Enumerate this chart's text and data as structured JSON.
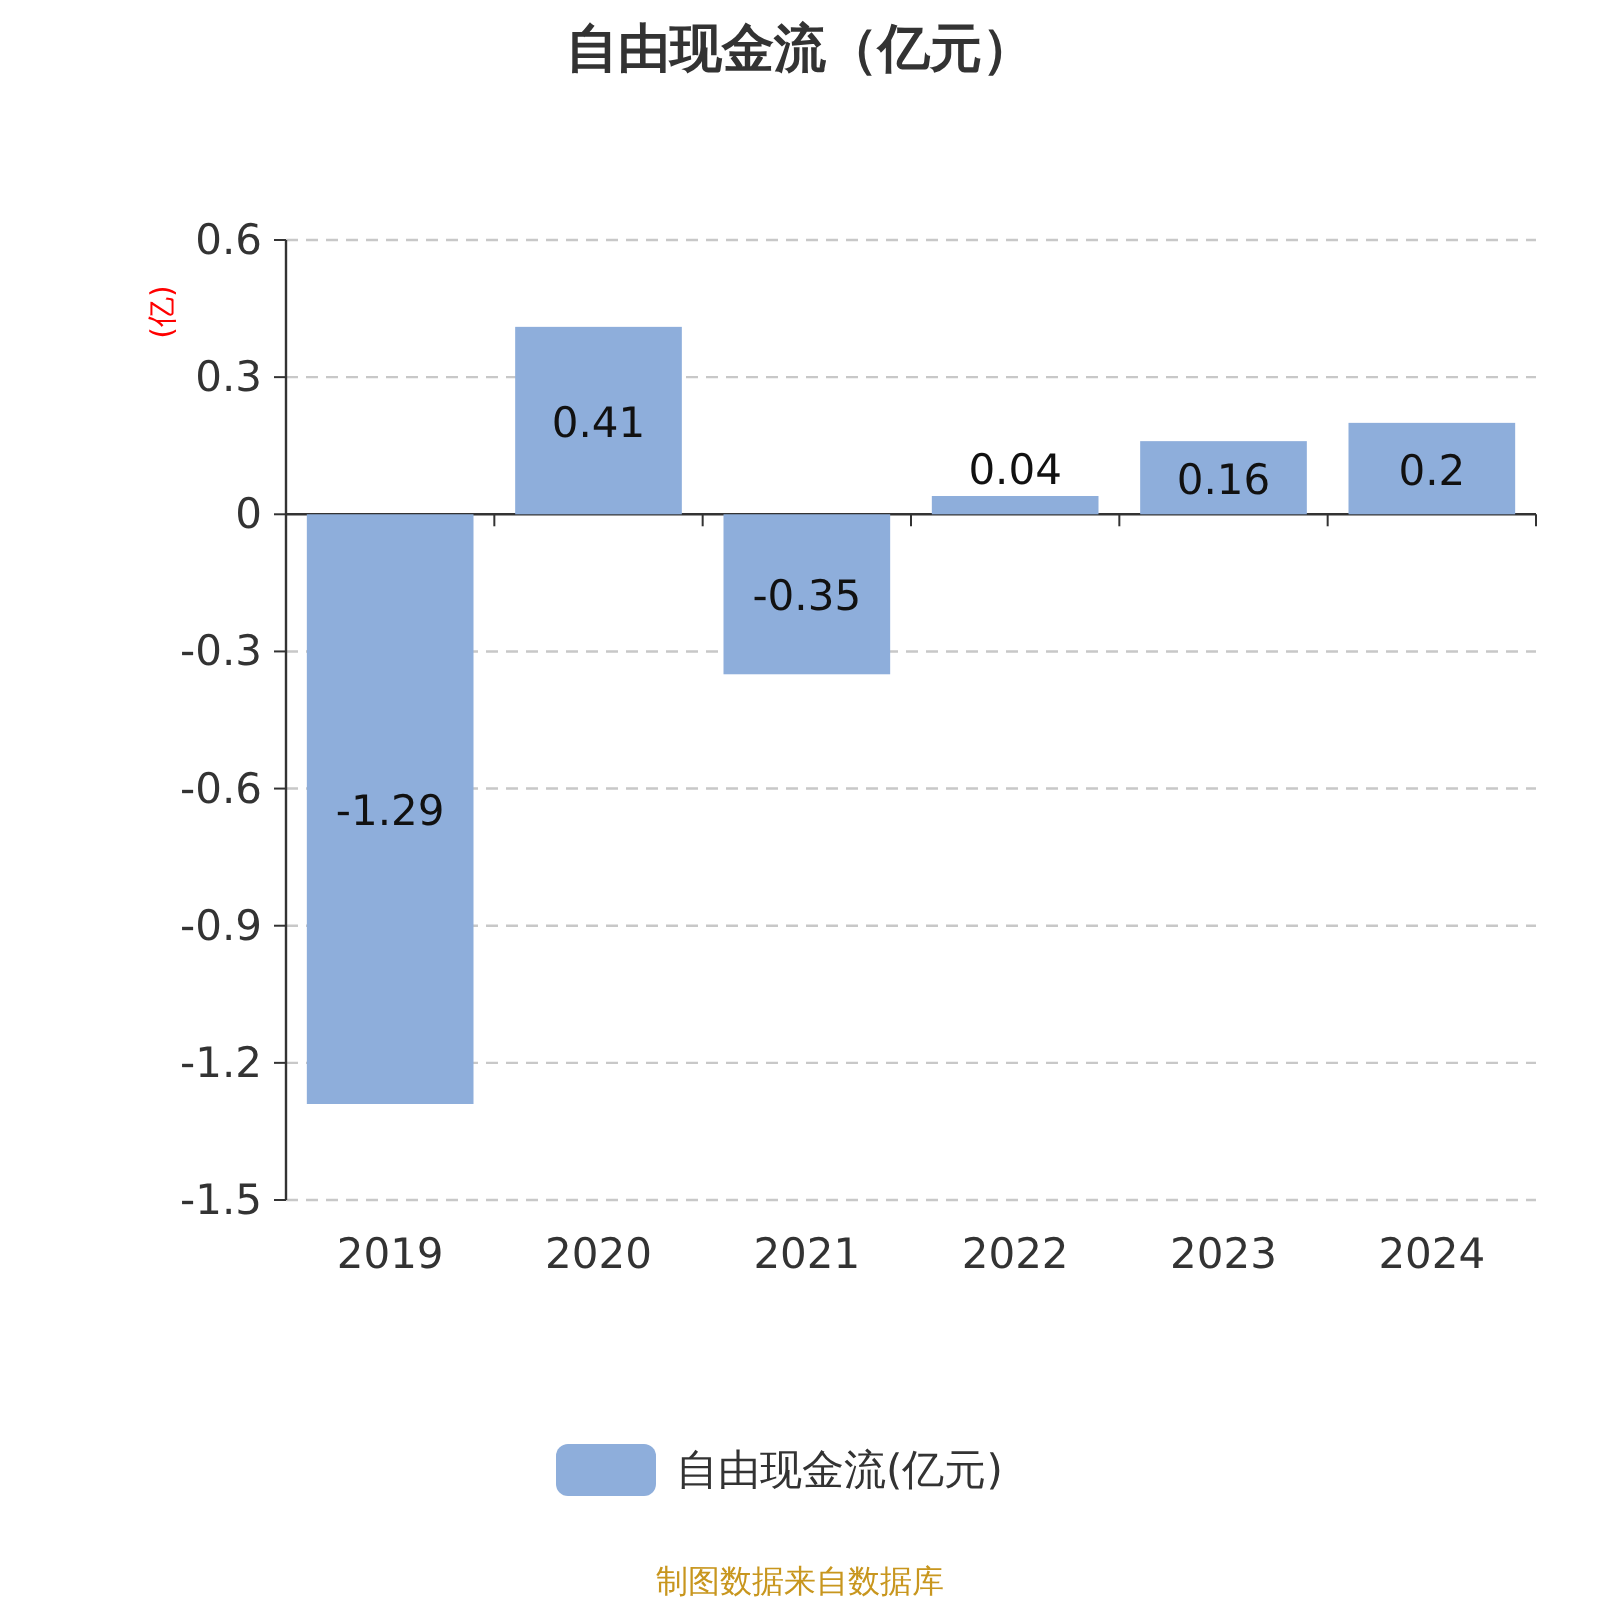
{
  "chart_data": {
    "type": "bar",
    "title": "自由现金流（亿元）",
    "ylabel": "(亿)",
    "categories": [
      "2019",
      "2020",
      "2021",
      "2022",
      "2023",
      "2024"
    ],
    "series": [
      {
        "name": "自由现金流(亿元)",
        "color": "#8eaedb",
        "values": [
          -1.29,
          0.41,
          -0.35,
          0.04,
          0.16,
          0.2
        ]
      }
    ],
    "ylim": [
      -1.5,
      0.6
    ],
    "yticks": [
      -1.5,
      -1.2,
      -0.9,
      -0.6,
      -0.3,
      0,
      0.3,
      0.6
    ],
    "grid": "y",
    "legend": "bottom",
    "data_labels": true,
    "annotations": [
      "制图数据来自数据库"
    ]
  }
}
